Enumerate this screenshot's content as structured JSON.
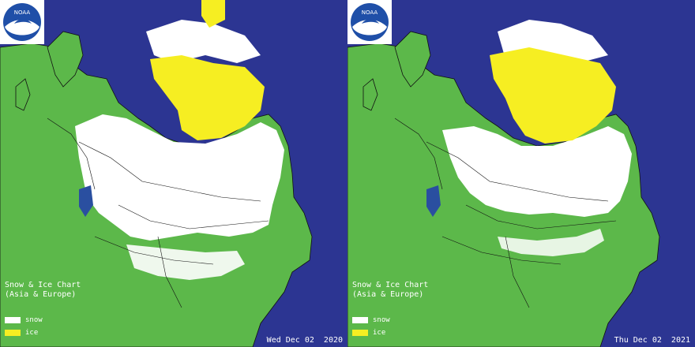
{
  "colors": {
    "ocean": "#2c3592",
    "land": "#5cb84a",
    "snow": "#ffffff",
    "ice": "#f6ee22",
    "lake": "#2a4fa0",
    "border": "#111111"
  },
  "panels": [
    {
      "logo_icon": "noaa-logo",
      "title_line1": "Snow & Ice Chart",
      "title_line2": "(Asia & Europe)",
      "legend": [
        {
          "label": "snow",
          "color": "#ffffff"
        },
        {
          "label": "ice",
          "color": "#f6ee22"
        }
      ],
      "date": "Wed Dec 02  2020"
    },
    {
      "logo_icon": "noaa-logo",
      "title_line1": "Snow & Ice Chart",
      "title_line2": "(Asia & Europe)",
      "legend": [
        {
          "label": "snow",
          "color": "#ffffff"
        },
        {
          "label": "ice",
          "color": "#f6ee22"
        }
      ],
      "date": "Thu Dec 02  2021"
    }
  ]
}
